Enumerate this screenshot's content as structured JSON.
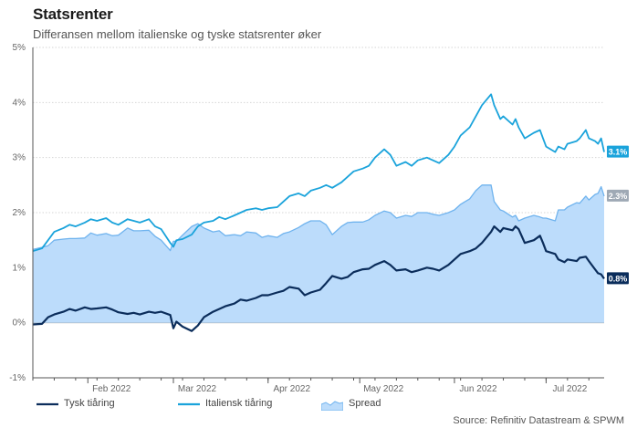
{
  "title": "Statsrenter",
  "subtitle": "Differansen mellom italienske og tyske statsrenter øker",
  "source": "Source: Refinitiv Datastream & SPWM",
  "colors": {
    "german": "#0b2d5b",
    "italian": "#1aa3db",
    "spread_fill": "#bcdcfb",
    "spread_line": "#6fb3ee",
    "spread_badge": "#9fa9b5",
    "axis": "#555555",
    "grid": "#d6d6d6"
  },
  "chart_data": {
    "type": "line",
    "x_start": "2022-01-14",
    "x_end": "2022-07-20",
    "ylim": [
      -1,
      5
    ],
    "yticks": [
      -1,
      0,
      1,
      2,
      3,
      4,
      5
    ],
    "ytick_labels": [
      "-1%",
      "0%",
      "1%",
      "2%",
      "3%",
      "4%",
      "5%"
    ],
    "xticks": [
      {
        "date": "2022-02-01",
        "label": "Feb 2022"
      },
      {
        "date": "2022-03-01",
        "label": "Mar 2022"
      },
      {
        "date": "2022-04-01",
        "label": "Apr 2022"
      },
      {
        "date": "2022-05-01",
        "label": "May 2022"
      },
      {
        "date": "2022-06-01",
        "label": "Jun 2022"
      },
      {
        "date": "2022-07-01",
        "label": "Jul 2022"
      }
    ],
    "grid": "horizontal",
    "legend_position": "bottom-left",
    "series": [
      {
        "name": "Tysk tiåring",
        "end_label": "0.8%",
        "points": [
          [
            "2022-01-14",
            -0.03
          ],
          [
            "2022-01-17",
            -0.02
          ],
          [
            "2022-01-19",
            0.1
          ],
          [
            "2022-01-21",
            0.15
          ],
          [
            "2022-01-24",
            0.2
          ],
          [
            "2022-01-26",
            0.25
          ],
          [
            "2022-01-28",
            0.22
          ],
          [
            "2022-01-31",
            0.28
          ],
          [
            "2022-02-02",
            0.25
          ],
          [
            "2022-02-04",
            0.26
          ],
          [
            "2022-02-07",
            0.28
          ],
          [
            "2022-02-09",
            0.24
          ],
          [
            "2022-02-11",
            0.19
          ],
          [
            "2022-02-14",
            0.16
          ],
          [
            "2022-02-16",
            0.18
          ],
          [
            "2022-02-18",
            0.15
          ],
          [
            "2022-02-21",
            0.2
          ],
          [
            "2022-02-23",
            0.18
          ],
          [
            "2022-02-25",
            0.2
          ],
          [
            "2022-02-28",
            0.14
          ],
          [
            "2022-03-01",
            -0.1
          ],
          [
            "2022-03-02",
            0.02
          ],
          [
            "2022-03-04",
            -0.07
          ],
          [
            "2022-03-07",
            -0.15
          ],
          [
            "2022-03-09",
            -0.05
          ],
          [
            "2022-03-11",
            0.1
          ],
          [
            "2022-03-14",
            0.2
          ],
          [
            "2022-03-16",
            0.25
          ],
          [
            "2022-03-18",
            0.3
          ],
          [
            "2022-03-21",
            0.35
          ],
          [
            "2022-03-23",
            0.42
          ],
          [
            "2022-03-25",
            0.4
          ],
          [
            "2022-03-28",
            0.45
          ],
          [
            "2022-03-30",
            0.5
          ],
          [
            "2022-04-01",
            0.5
          ],
          [
            "2022-04-04",
            0.55
          ],
          [
            "2022-04-06",
            0.58
          ],
          [
            "2022-04-08",
            0.65
          ],
          [
            "2022-04-11",
            0.62
          ],
          [
            "2022-04-13",
            0.5
          ],
          [
            "2022-04-15",
            0.55
          ],
          [
            "2022-04-18",
            0.6
          ],
          [
            "2022-04-20",
            0.72
          ],
          [
            "2022-04-22",
            0.85
          ],
          [
            "2022-04-25",
            0.8
          ],
          [
            "2022-04-27",
            0.83
          ],
          [
            "2022-04-29",
            0.92
          ],
          [
            "2022-05-02",
            0.97
          ],
          [
            "2022-05-04",
            0.98
          ],
          [
            "2022-05-06",
            1.05
          ],
          [
            "2022-05-09",
            1.12
          ],
          [
            "2022-05-11",
            1.05
          ],
          [
            "2022-05-13",
            0.95
          ],
          [
            "2022-05-16",
            0.97
          ],
          [
            "2022-05-18",
            0.92
          ],
          [
            "2022-05-20",
            0.95
          ],
          [
            "2022-05-23",
            1.0
          ],
          [
            "2022-05-25",
            0.98
          ],
          [
            "2022-05-27",
            0.95
          ],
          [
            "2022-05-30",
            1.05
          ],
          [
            "2022-06-01",
            1.15
          ],
          [
            "2022-06-03",
            1.25
          ],
          [
            "2022-06-06",
            1.3
          ],
          [
            "2022-06-08",
            1.35
          ],
          [
            "2022-06-10",
            1.45
          ],
          [
            "2022-06-13",
            1.65
          ],
          [
            "2022-06-14",
            1.75
          ],
          [
            "2022-06-16",
            1.65
          ],
          [
            "2022-06-17",
            1.72
          ],
          [
            "2022-06-20",
            1.68
          ],
          [
            "2022-06-21",
            1.75
          ],
          [
            "2022-06-22",
            1.7
          ],
          [
            "2022-06-24",
            1.45
          ],
          [
            "2022-06-27",
            1.5
          ],
          [
            "2022-06-29",
            1.58
          ],
          [
            "2022-06-30",
            1.45
          ],
          [
            "2022-07-01",
            1.3
          ],
          [
            "2022-07-04",
            1.25
          ],
          [
            "2022-07-05",
            1.15
          ],
          [
            "2022-07-07",
            1.1
          ],
          [
            "2022-07-08",
            1.15
          ],
          [
            "2022-07-11",
            1.12
          ],
          [
            "2022-07-12",
            1.18
          ],
          [
            "2022-07-14",
            1.2
          ],
          [
            "2022-07-15",
            1.12
          ],
          [
            "2022-07-17",
            0.97
          ],
          [
            "2022-07-18",
            0.9
          ],
          [
            "2022-07-19",
            0.88
          ],
          [
            "2022-07-20",
            0.8
          ]
        ]
      },
      {
        "name": "Italiensk tiåring",
        "end_label": "3.1%",
        "points": [
          [
            "2022-01-14",
            1.3
          ],
          [
            "2022-01-17",
            1.35
          ],
          [
            "2022-01-19",
            1.5
          ],
          [
            "2022-01-21",
            1.65
          ],
          [
            "2022-01-24",
            1.72
          ],
          [
            "2022-01-26",
            1.78
          ],
          [
            "2022-01-28",
            1.75
          ],
          [
            "2022-01-31",
            1.82
          ],
          [
            "2022-02-02",
            1.88
          ],
          [
            "2022-02-04",
            1.85
          ],
          [
            "2022-02-07",
            1.9
          ],
          [
            "2022-02-09",
            1.82
          ],
          [
            "2022-02-11",
            1.78
          ],
          [
            "2022-02-14",
            1.88
          ],
          [
            "2022-02-16",
            1.85
          ],
          [
            "2022-02-18",
            1.82
          ],
          [
            "2022-02-21",
            1.88
          ],
          [
            "2022-02-23",
            1.75
          ],
          [
            "2022-02-25",
            1.7
          ],
          [
            "2022-02-28",
            1.45
          ],
          [
            "2022-03-01",
            1.38
          ],
          [
            "2022-03-02",
            1.5
          ],
          [
            "2022-03-04",
            1.52
          ],
          [
            "2022-03-07",
            1.6
          ],
          [
            "2022-03-09",
            1.75
          ],
          [
            "2022-03-11",
            1.82
          ],
          [
            "2022-03-14",
            1.85
          ],
          [
            "2022-03-16",
            1.92
          ],
          [
            "2022-03-18",
            1.88
          ],
          [
            "2022-03-21",
            1.95
          ],
          [
            "2022-03-23",
            2.0
          ],
          [
            "2022-03-25",
            2.05
          ],
          [
            "2022-03-28",
            2.08
          ],
          [
            "2022-03-30",
            2.05
          ],
          [
            "2022-04-01",
            2.08
          ],
          [
            "2022-04-04",
            2.1
          ],
          [
            "2022-04-06",
            2.2
          ],
          [
            "2022-04-08",
            2.3
          ],
          [
            "2022-04-11",
            2.35
          ],
          [
            "2022-04-13",
            2.3
          ],
          [
            "2022-04-15",
            2.4
          ],
          [
            "2022-04-18",
            2.45
          ],
          [
            "2022-04-20",
            2.5
          ],
          [
            "2022-04-22",
            2.45
          ],
          [
            "2022-04-25",
            2.55
          ],
          [
            "2022-04-27",
            2.65
          ],
          [
            "2022-04-29",
            2.75
          ],
          [
            "2022-05-02",
            2.8
          ],
          [
            "2022-05-04",
            2.85
          ],
          [
            "2022-05-06",
            3.0
          ],
          [
            "2022-05-09",
            3.15
          ],
          [
            "2022-05-11",
            3.05
          ],
          [
            "2022-05-13",
            2.85
          ],
          [
            "2022-05-16",
            2.92
          ],
          [
            "2022-05-18",
            2.85
          ],
          [
            "2022-05-20",
            2.95
          ],
          [
            "2022-05-23",
            3.0
          ],
          [
            "2022-05-25",
            2.95
          ],
          [
            "2022-05-27",
            2.9
          ],
          [
            "2022-05-30",
            3.05
          ],
          [
            "2022-06-01",
            3.2
          ],
          [
            "2022-06-03",
            3.4
          ],
          [
            "2022-06-06",
            3.55
          ],
          [
            "2022-06-08",
            3.75
          ],
          [
            "2022-06-10",
            3.95
          ],
          [
            "2022-06-13",
            4.15
          ],
          [
            "2022-06-14",
            3.95
          ],
          [
            "2022-06-16",
            3.7
          ],
          [
            "2022-06-17",
            3.75
          ],
          [
            "2022-06-20",
            3.6
          ],
          [
            "2022-06-21",
            3.7
          ],
          [
            "2022-06-22",
            3.55
          ],
          [
            "2022-06-24",
            3.35
          ],
          [
            "2022-06-27",
            3.45
          ],
          [
            "2022-06-29",
            3.5
          ],
          [
            "2022-06-30",
            3.35
          ],
          [
            "2022-07-01",
            3.2
          ],
          [
            "2022-07-04",
            3.1
          ],
          [
            "2022-07-05",
            3.2
          ],
          [
            "2022-07-07",
            3.15
          ],
          [
            "2022-07-08",
            3.25
          ],
          [
            "2022-07-11",
            3.3
          ],
          [
            "2022-07-12",
            3.35
          ],
          [
            "2022-07-14",
            3.5
          ],
          [
            "2022-07-15",
            3.35
          ],
          [
            "2022-07-17",
            3.3
          ],
          [
            "2022-07-18",
            3.25
          ],
          [
            "2022-07-19",
            3.35
          ],
          [
            "2022-07-20",
            3.1
          ]
        ]
      },
      {
        "name": "Spread",
        "end_label": "2.3%",
        "points": [
          [
            "2022-01-14",
            1.33
          ],
          [
            "2022-01-17",
            1.37
          ],
          [
            "2022-01-19",
            1.4
          ],
          [
            "2022-01-21",
            1.5
          ],
          [
            "2022-01-24",
            1.52
          ],
          [
            "2022-01-26",
            1.53
          ],
          [
            "2022-01-28",
            1.53
          ],
          [
            "2022-01-31",
            1.54
          ],
          [
            "2022-02-02",
            1.63
          ],
          [
            "2022-02-04",
            1.59
          ],
          [
            "2022-02-07",
            1.62
          ],
          [
            "2022-02-09",
            1.58
          ],
          [
            "2022-02-11",
            1.59
          ],
          [
            "2022-02-14",
            1.72
          ],
          [
            "2022-02-16",
            1.67
          ],
          [
            "2022-02-18",
            1.67
          ],
          [
            "2022-02-21",
            1.68
          ],
          [
            "2022-02-23",
            1.57
          ],
          [
            "2022-02-25",
            1.5
          ],
          [
            "2022-02-28",
            1.31
          ],
          [
            "2022-03-01",
            1.48
          ],
          [
            "2022-03-02",
            1.48
          ],
          [
            "2022-03-04",
            1.59
          ],
          [
            "2022-03-07",
            1.75
          ],
          [
            "2022-03-09",
            1.8
          ],
          [
            "2022-03-11",
            1.72
          ],
          [
            "2022-03-14",
            1.65
          ],
          [
            "2022-03-16",
            1.67
          ],
          [
            "2022-03-18",
            1.58
          ],
          [
            "2022-03-21",
            1.6
          ],
          [
            "2022-03-23",
            1.58
          ],
          [
            "2022-03-25",
            1.65
          ],
          [
            "2022-03-28",
            1.63
          ],
          [
            "2022-03-30",
            1.55
          ],
          [
            "2022-04-01",
            1.58
          ],
          [
            "2022-04-04",
            1.55
          ],
          [
            "2022-04-06",
            1.62
          ],
          [
            "2022-04-08",
            1.65
          ],
          [
            "2022-04-11",
            1.73
          ],
          [
            "2022-04-13",
            1.8
          ],
          [
            "2022-04-15",
            1.85
          ],
          [
            "2022-04-18",
            1.85
          ],
          [
            "2022-04-20",
            1.78
          ],
          [
            "2022-04-22",
            1.6
          ],
          [
            "2022-04-25",
            1.75
          ],
          [
            "2022-04-27",
            1.82
          ],
          [
            "2022-04-29",
            1.83
          ],
          [
            "2022-05-02",
            1.83
          ],
          [
            "2022-05-04",
            1.87
          ],
          [
            "2022-05-06",
            1.95
          ],
          [
            "2022-05-09",
            2.03
          ],
          [
            "2022-05-11",
            2.0
          ],
          [
            "2022-05-13",
            1.9
          ],
          [
            "2022-05-16",
            1.95
          ],
          [
            "2022-05-18",
            1.93
          ],
          [
            "2022-05-20",
            2.0
          ],
          [
            "2022-05-23",
            2.0
          ],
          [
            "2022-05-25",
            1.97
          ],
          [
            "2022-05-27",
            1.95
          ],
          [
            "2022-05-30",
            2.0
          ],
          [
            "2022-06-01",
            2.05
          ],
          [
            "2022-06-03",
            2.15
          ],
          [
            "2022-06-06",
            2.25
          ],
          [
            "2022-06-08",
            2.4
          ],
          [
            "2022-06-10",
            2.5
          ],
          [
            "2022-06-13",
            2.5
          ],
          [
            "2022-06-14",
            2.2
          ],
          [
            "2022-06-16",
            2.05
          ],
          [
            "2022-06-17",
            2.03
          ],
          [
            "2022-06-20",
            1.92
          ],
          [
            "2022-06-21",
            1.95
          ],
          [
            "2022-06-22",
            1.85
          ],
          [
            "2022-06-24",
            1.9
          ],
          [
            "2022-06-27",
            1.95
          ],
          [
            "2022-06-29",
            1.92
          ],
          [
            "2022-06-30",
            1.9
          ],
          [
            "2022-07-01",
            1.9
          ],
          [
            "2022-07-04",
            1.85
          ],
          [
            "2022-07-05",
            2.05
          ],
          [
            "2022-07-07",
            2.05
          ],
          [
            "2022-07-08",
            2.1
          ],
          [
            "2022-07-11",
            2.18
          ],
          [
            "2022-07-12",
            2.17
          ],
          [
            "2022-07-14",
            2.3
          ],
          [
            "2022-07-15",
            2.23
          ],
          [
            "2022-07-17",
            2.33
          ],
          [
            "2022-07-18",
            2.35
          ],
          [
            "2022-07-19",
            2.47
          ],
          [
            "2022-07-20",
            2.3
          ]
        ]
      }
    ]
  }
}
